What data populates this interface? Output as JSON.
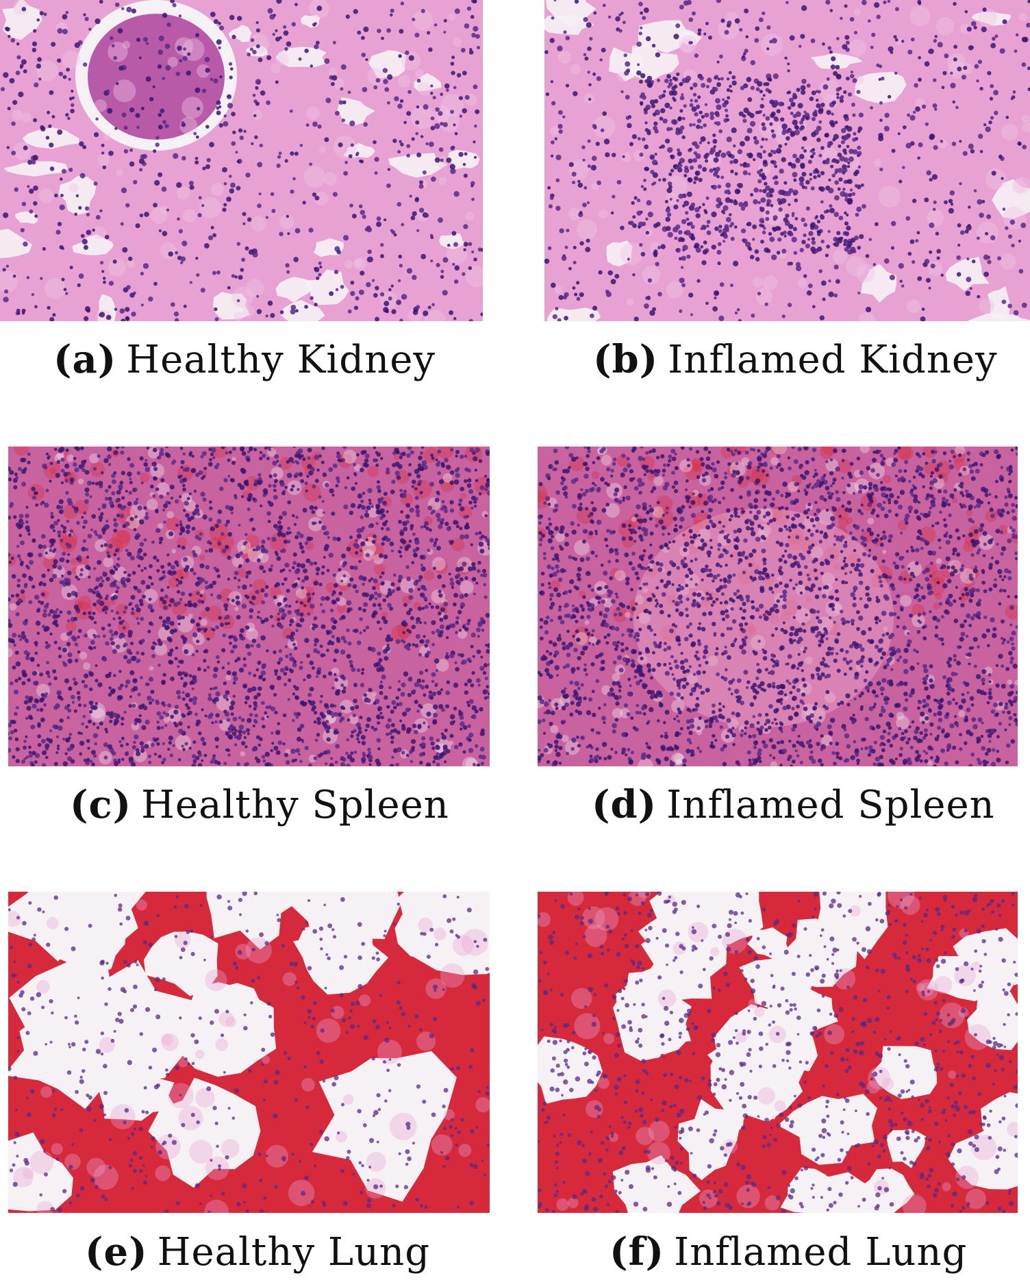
{
  "figure": {
    "panels": [
      {
        "label": "(a)",
        "title": "Healthy Kidney",
        "tissue": "kidney",
        "state": "healthy"
      },
      {
        "label": "(b)",
        "title": "Inflamed Kidney",
        "tissue": "kidney",
        "state": "inflamed"
      },
      {
        "label": "(c)",
        "title": "Healthy Spleen",
        "tissue": "spleen",
        "state": "healthy"
      },
      {
        "label": "(d)",
        "title": "Inflamed Spleen",
        "tissue": "spleen",
        "state": "inflamed"
      },
      {
        "label": "(e)",
        "title": "Healthy Lung",
        "tissue": "lung",
        "state": "healthy"
      },
      {
        "label": "(f)",
        "title": "Inflamed Lung",
        "tissue": "lung",
        "state": "inflamed"
      }
    ]
  },
  "colors": {
    "stroma_pink": "#e7a2d3",
    "stroma_light": "#f1c6e6",
    "nucleus_purple": "#5a2a86",
    "nucleus_dark": "#3d1670",
    "blood_red": "#d62a3c",
    "lumen_white": "#f6f1f5",
    "slide_gray": "#eeeeee"
  }
}
